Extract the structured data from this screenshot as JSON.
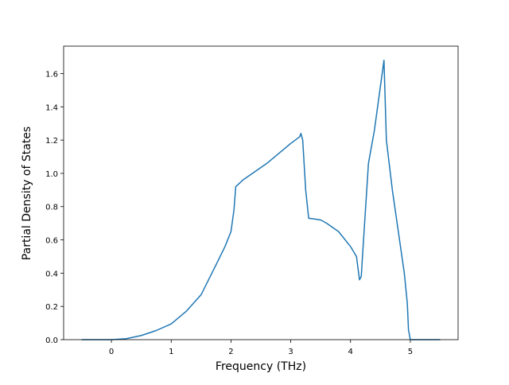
{
  "chart_data": {
    "type": "line",
    "xlabel": "Frequency (THz)",
    "ylabel": "Partial Density of States",
    "x": [
      -0.5,
      0,
      0.25,
      0.5,
      0.75,
      1,
      1.25,
      1.5,
      1.75,
      1.9,
      2.0,
      2.05,
      2.08,
      2.2,
      2.6,
      3.0,
      3.15,
      3.17,
      3.2,
      3.25,
      3.3,
      3.4,
      3.5,
      3.6,
      3.8,
      4.0,
      4.1,
      4.15,
      4.18,
      4.2,
      4.3,
      4.4,
      4.56,
      4.6,
      4.7,
      4.8,
      4.9,
      4.95,
      4.97,
      5.0,
      5.5
    ],
    "series": [
      {
        "color": "#1f77b4",
        "values": [
          0,
          0,
          0.006,
          0.025,
          0.055,
          0.095,
          0.17,
          0.27,
          0.45,
          0.56,
          0.65,
          0.78,
          0.92,
          0.96,
          1.06,
          1.18,
          1.22,
          1.24,
          1.2,
          0.9,
          0.73,
          0.725,
          0.72,
          0.7,
          0.65,
          0.56,
          0.5,
          0.36,
          0.38,
          0.5,
          1.06,
          1.26,
          1.68,
          1.2,
          0.9,
          0.65,
          0.4,
          0.22,
          0.06,
          0,
          0
        ]
      }
    ],
    "xlim": [
      -0.8,
      5.8
    ],
    "ylim": [
      0,
      1.765
    ],
    "xticks": [
      0,
      1,
      2,
      3,
      4,
      5
    ],
    "yticks": [
      {
        "value": 0,
        "label": "0.0"
      },
      0.2,
      0.4,
      0.6,
      0.8,
      {
        "value": 1,
        "label": "1.0"
      },
      1.2,
      1.4,
      1.6
    ]
  }
}
